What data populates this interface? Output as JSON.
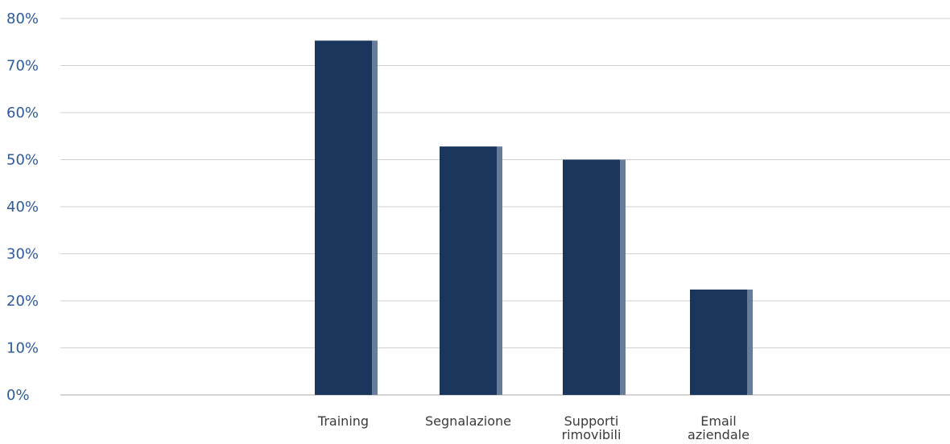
{
  "chart_data": {
    "type": "bar",
    "categories": [
      [
        "Training"
      ],
      [
        "Segnalazione"
      ],
      [
        "Supporti",
        "rimovibili"
      ],
      [
        "Email",
        "aziendale"
      ]
    ],
    "values": [
      75.3,
      52.8,
      50.0,
      22.4
    ],
    "ylim": [
      0,
      80
    ],
    "yticks": [
      "0%",
      "10%",
      "20%",
      "30%",
      "40%",
      "50%",
      "60%",
      "70%",
      "80%"
    ],
    "grid": true,
    "colors": {
      "bar": "#1a365d",
      "bar_shadow": "#667c99",
      "tick_label": "#2f5b9a",
      "category_label": "#3a3a3a"
    }
  }
}
